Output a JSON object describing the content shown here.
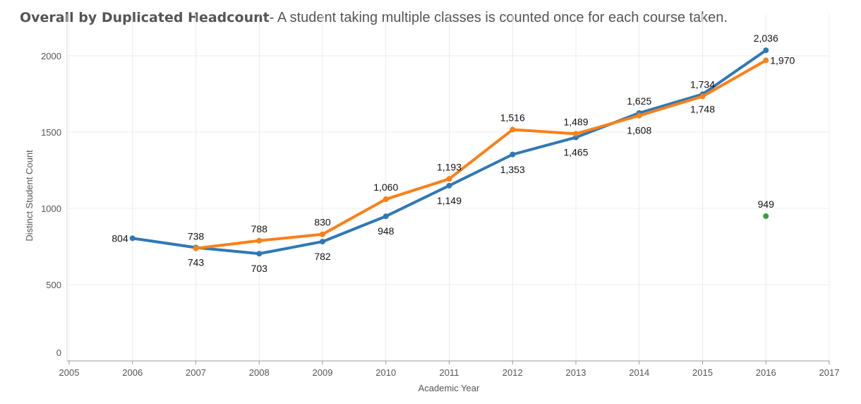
{
  "chart_data": {
    "type": "line",
    "title": "Overall by Duplicated Headcount",
    "subtitle": "- A student taking multiple classes is counted once for each course taken.",
    "xlabel": "Academic Year",
    "ylabel": "Distinct Student Count",
    "xlim": [
      2005,
      2017
    ],
    "ylim": [
      0,
      2000
    ],
    "xticks": [
      2005,
      2006,
      2007,
      2008,
      2009,
      2010,
      2011,
      2012,
      2013,
      2014,
      2015,
      2016,
      2017
    ],
    "yticks": [
      0,
      500,
      1000,
      1500,
      2000
    ],
    "grid": true,
    "series": [
      {
        "name": "blue",
        "color": "#2f78b5",
        "x": [
          2006,
          2007,
          2008,
          2009,
          2010,
          2011,
          2012,
          2013,
          2014,
          2015,
          2016
        ],
        "values": [
          804,
          743,
          703,
          782,
          948,
          1149,
          1353,
          1465,
          1625,
          1748,
          2036
        ],
        "labels": [
          "804",
          "743",
          "703",
          "782",
          "948",
          "1,149",
          "1,353",
          "1,465",
          "1,625",
          "1,748",
          "2,036"
        ]
      },
      {
        "name": "orange",
        "color": "#fd7f17",
        "x": [
          2007,
          2008,
          2009,
          2010,
          2011,
          2012,
          2013,
          2014,
          2015,
          2016
        ],
        "values": [
          738,
          788,
          830,
          1060,
          1193,
          1516,
          1489,
          1608,
          1734,
          1970
        ],
        "labels": [
          "738",
          "788",
          "830",
          "1,060",
          "1,193",
          "1,516",
          "1,489",
          "1,608",
          "1,734",
          "1,970"
        ]
      },
      {
        "name": "green",
        "color": "#35a03a",
        "x": [
          2016
        ],
        "values": [
          949
        ],
        "labels": [
          "949"
        ]
      }
    ]
  }
}
